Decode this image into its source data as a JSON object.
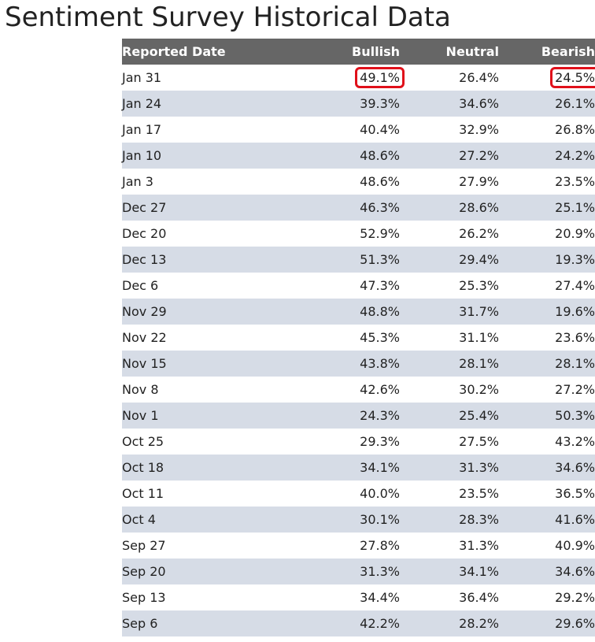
{
  "title": "Sentiment Survey Historical Data",
  "columns": {
    "date": "Reported Date",
    "bullish": "Bullish",
    "neutral": "Neutral",
    "bearish": "Bearish"
  },
  "highlight_color": "#e0101a",
  "header_bg": "#666666",
  "stripe_bg": "#d6dce6",
  "rows": [
    {
      "date": "Jan 31",
      "bullish": "49.1%",
      "neutral": "26.4%",
      "bearish": "24.5%",
      "highlighted": [
        "bullish",
        "bearish"
      ]
    },
    {
      "date": "Jan 24",
      "bullish": "39.3%",
      "neutral": "34.6%",
      "bearish": "26.1%"
    },
    {
      "date": "Jan 17",
      "bullish": "40.4%",
      "neutral": "32.9%",
      "bearish": "26.8%"
    },
    {
      "date": "Jan 10",
      "bullish": "48.6%",
      "neutral": "27.2%",
      "bearish": "24.2%"
    },
    {
      "date": "Jan 3",
      "bullish": "48.6%",
      "neutral": "27.9%",
      "bearish": "23.5%"
    },
    {
      "date": "Dec 27",
      "bullish": "46.3%",
      "neutral": "28.6%",
      "bearish": "25.1%"
    },
    {
      "date": "Dec 20",
      "bullish": "52.9%",
      "neutral": "26.2%",
      "bearish": "20.9%"
    },
    {
      "date": "Dec 13",
      "bullish": "51.3%",
      "neutral": "29.4%",
      "bearish": "19.3%"
    },
    {
      "date": "Dec 6",
      "bullish": "47.3%",
      "neutral": "25.3%",
      "bearish": "27.4%"
    },
    {
      "date": "Nov 29",
      "bullish": "48.8%",
      "neutral": "31.7%",
      "bearish": "19.6%"
    },
    {
      "date": "Nov 22",
      "bullish": "45.3%",
      "neutral": "31.1%",
      "bearish": "23.6%"
    },
    {
      "date": "Nov 15",
      "bullish": "43.8%",
      "neutral": "28.1%",
      "bearish": "28.1%"
    },
    {
      "date": "Nov 8",
      "bullish": "42.6%",
      "neutral": "30.2%",
      "bearish": "27.2%"
    },
    {
      "date": "Nov 1",
      "bullish": "24.3%",
      "neutral": "25.4%",
      "bearish": "50.3%"
    },
    {
      "date": "Oct 25",
      "bullish": "29.3%",
      "neutral": "27.5%",
      "bearish": "43.2%"
    },
    {
      "date": "Oct 18",
      "bullish": "34.1%",
      "neutral": "31.3%",
      "bearish": "34.6%"
    },
    {
      "date": "Oct 11",
      "bullish": "40.0%",
      "neutral": "23.5%",
      "bearish": "36.5%"
    },
    {
      "date": "Oct 4",
      "bullish": "30.1%",
      "neutral": "28.3%",
      "bearish": "41.6%"
    },
    {
      "date": "Sep 27",
      "bullish": "27.8%",
      "neutral": "31.3%",
      "bearish": "40.9%"
    },
    {
      "date": "Sep 20",
      "bullish": "31.3%",
      "neutral": "34.1%",
      "bearish": "34.6%"
    },
    {
      "date": "Sep 13",
      "bullish": "34.4%",
      "neutral": "36.4%",
      "bearish": "29.2%"
    },
    {
      "date": "Sep 6",
      "bullish": "42.2%",
      "neutral": "28.2%",
      "bearish": "29.6%"
    }
  ]
}
